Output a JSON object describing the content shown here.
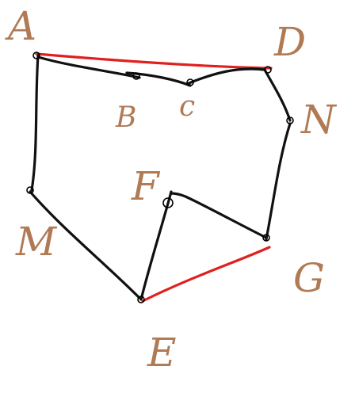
{
  "colors": {
    "background": "#ffffff",
    "edge_default": "#111111",
    "edge_highlight": "#e0201e",
    "label": "#b07a55"
  },
  "labels": {
    "A": "A",
    "B": "B",
    "C": "c",
    "D": "D",
    "N": "N",
    "F": "F",
    "G": "G",
    "M": "M",
    "E": "E"
  },
  "edges": [
    {
      "from": "A",
      "to": "D",
      "color": "red"
    },
    {
      "from": "A",
      "to": "B",
      "color": "black"
    },
    {
      "from": "B",
      "to": "C",
      "color": "black"
    },
    {
      "from": "C",
      "to": "D",
      "color": "black"
    },
    {
      "from": "D",
      "to": "N",
      "color": "black"
    },
    {
      "from": "N",
      "to": "G",
      "color": "black"
    },
    {
      "from": "G",
      "to": "F",
      "color": "black"
    },
    {
      "from": "F",
      "to": "E",
      "color": "black"
    },
    {
      "from": "G",
      "to": "E",
      "color": "red"
    },
    {
      "from": "E",
      "to": "M",
      "color": "black"
    },
    {
      "from": "M",
      "to": "A",
      "color": "black"
    }
  ]
}
